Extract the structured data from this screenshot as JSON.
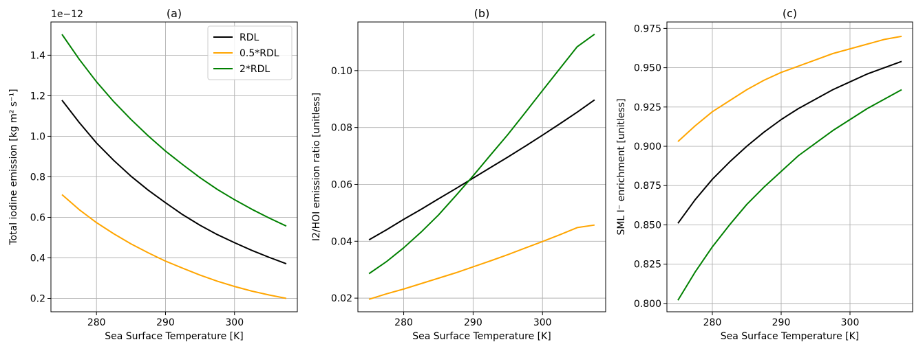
{
  "chart_data": [
    {
      "type": "line",
      "title": "(a)",
      "xlabel": "Sea Surface Temperature [K]",
      "ylabel": "Total iodine emission [kg m² s⁻¹]",
      "offset_label": "1e−12",
      "xlim": [
        273.4,
        309.1
      ],
      "ylim": [
        0.134,
        1.564
      ],
      "xticks": [
        280,
        290,
        300
      ],
      "xtick_labels": [
        "280",
        "290",
        "300"
      ],
      "yticks": [
        0.2,
        0.4,
        0.6,
        0.8,
        1.0,
        1.2,
        1.4
      ],
      "ytick_labels": [
        "0.2",
        "0.4",
        "0.6",
        "0.8",
        "1.0",
        "1.2",
        "1.4"
      ],
      "grid": true,
      "legend": "top-right",
      "x": [
        275,
        277.5,
        280,
        282.5,
        285,
        287.5,
        290,
        292.5,
        295,
        297.5,
        300,
        302.5,
        305,
        307.5
      ],
      "series": [
        {
          "name": "RDL",
          "color": "#000000",
          "values": [
            1.178,
            1.068,
            0.967,
            0.881,
            0.803,
            0.734,
            0.672,
            0.613,
            0.561,
            0.515,
            0.475,
            0.437,
            0.403,
            0.371
          ]
        },
        {
          "name": "0.5*RDL",
          "color": "#ffa500",
          "values": [
            0.712,
            0.638,
            0.574,
            0.519,
            0.469,
            0.425,
            0.384,
            0.349,
            0.315,
            0.285,
            0.259,
            0.236,
            0.217,
            0.2
          ]
        },
        {
          "name": "2*RDL",
          "color": "#008000",
          "values": [
            1.503,
            1.38,
            1.269,
            1.171,
            1.083,
            1.002,
            0.927,
            0.86,
            0.796,
            0.738,
            0.687,
            0.64,
            0.597,
            0.557
          ]
        }
      ]
    },
    {
      "type": "line",
      "title": "(b)",
      "xlabel": "Sea Surface Temperature [K]",
      "ylabel": "I2/HOI emission ratio [unitless]",
      "xlim": [
        273.4,
        309.1
      ],
      "ylim": [
        0.0152,
        0.1171
      ],
      "xticks": [
        280,
        290,
        300
      ],
      "xtick_labels": [
        "280",
        "290",
        "300"
      ],
      "yticks": [
        0.02,
        0.04,
        0.06,
        0.08,
        0.1
      ],
      "ytick_labels": [
        "0.02",
        "0.04",
        "0.06",
        "0.08",
        "0.10"
      ],
      "grid": true,
      "x": [
        275,
        277.5,
        280,
        282.5,
        285,
        287.5,
        290,
        292.5,
        295,
        297.5,
        300,
        302.5,
        305,
        307.5
      ],
      "series": [
        {
          "name": "RDL",
          "color": "#000000",
          "values": [
            0.0405,
            0.044,
            0.0477,
            0.0512,
            0.0549,
            0.0585,
            0.0622,
            0.0659,
            0.0696,
            0.0734,
            0.0773,
            0.0813,
            0.0854,
            0.0897
          ]
        },
        {
          "name": "0.5*RDL",
          "color": "#ffa500",
          "values": [
            0.0196,
            0.0215,
            0.0232,
            0.0251,
            0.027,
            0.0289,
            0.031,
            0.0331,
            0.0353,
            0.0376,
            0.0399,
            0.0423,
            0.0448,
            0.0457
          ]
        },
        {
          "name": "2*RDL",
          "color": "#008000",
          "values": [
            0.0286,
            0.0328,
            0.0377,
            0.0432,
            0.0492,
            0.056,
            0.063,
            0.0703,
            0.0775,
            0.0852,
            0.093,
            0.1007,
            0.1084,
            0.1128
          ]
        }
      ]
    },
    {
      "type": "line",
      "title": "(c)",
      "xlabel": "Sea Surface Temperature [K]",
      "ylabel": "SML I⁻ enrichment [unitless]",
      "xlim": [
        273.4,
        309.1
      ],
      "ylim": [
        0.7947,
        0.9791
      ],
      "xticks": [
        280,
        290,
        300
      ],
      "xtick_labels": [
        "280",
        "290",
        "300"
      ],
      "yticks": [
        0.8,
        0.825,
        0.85,
        0.875,
        0.9,
        0.925,
        0.95,
        0.975
      ],
      "ytick_labels": [
        "0.800",
        "0.825",
        "0.850",
        "0.875",
        "0.900",
        "0.925",
        "0.950",
        "0.975"
      ],
      "grid": true,
      "x": [
        275,
        277.5,
        280,
        282.5,
        285,
        287.5,
        290,
        292.5,
        295,
        297.5,
        300,
        302.5,
        305,
        307.5
      ],
      "series": [
        {
          "name": "RDL",
          "color": "#000000",
          "values": [
            0.851,
            0.866,
            0.879,
            0.89,
            0.9,
            0.909,
            0.917,
            0.924,
            0.93,
            0.936,
            0.941,
            0.946,
            0.95,
            0.954
          ]
        },
        {
          "name": "0.5*RDL",
          "color": "#ffa500",
          "values": [
            0.903,
            0.913,
            0.922,
            0.929,
            0.936,
            0.942,
            0.947,
            0.951,
            0.955,
            0.959,
            0.962,
            0.965,
            0.968,
            0.97
          ]
        },
        {
          "name": "2*RDL",
          "color": "#008000",
          "values": [
            0.802,
            0.82,
            0.836,
            0.85,
            0.863,
            0.874,
            0.884,
            0.894,
            0.902,
            0.91,
            0.917,
            0.924,
            0.93,
            0.936
          ]
        }
      ]
    }
  ]
}
